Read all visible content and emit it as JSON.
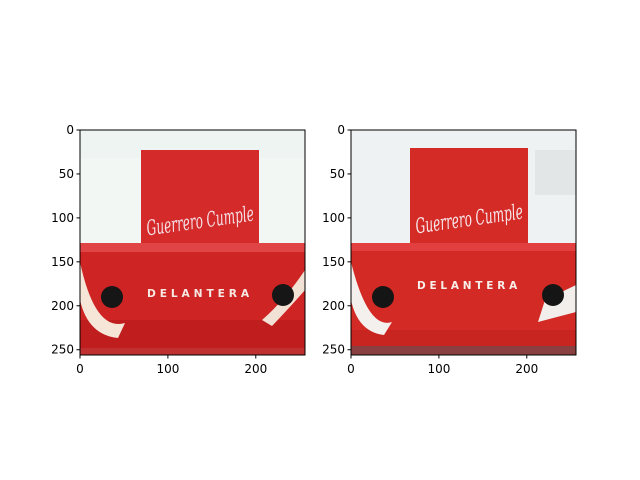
{
  "chart_data": [
    {
      "type": "image",
      "title": "",
      "xlabel": "",
      "ylabel": "",
      "xlim": [
        0,
        256
      ],
      "ylim": [
        256,
        0
      ],
      "xticks": [
        0,
        100,
        200
      ],
      "yticks": [
        0,
        50,
        100,
        150,
        200,
        250
      ],
      "sign": {
        "script_text": "Guerrero Cumple",
        "caps_text": "DELANTERA"
      },
      "colors": {
        "bus_red": "#d42a2a",
        "sky": "#f2f6f4",
        "dark": "#1b1b1b"
      }
    },
    {
      "type": "image",
      "title": "",
      "xlabel": "",
      "ylabel": "",
      "xlim": [
        0,
        256
      ],
      "ylim": [
        256,
        0
      ],
      "xticks": [
        0,
        100,
        200
      ],
      "yticks": [
        0,
        50,
        100,
        150,
        200,
        250
      ],
      "sign": {
        "script_text": "Guerrero Cumple",
        "caps_text": "DELANTERA"
      },
      "colors": {
        "bus_red": "#d52b26",
        "sky": "#eef2f2",
        "dark": "#1a1a1a"
      }
    }
  ]
}
